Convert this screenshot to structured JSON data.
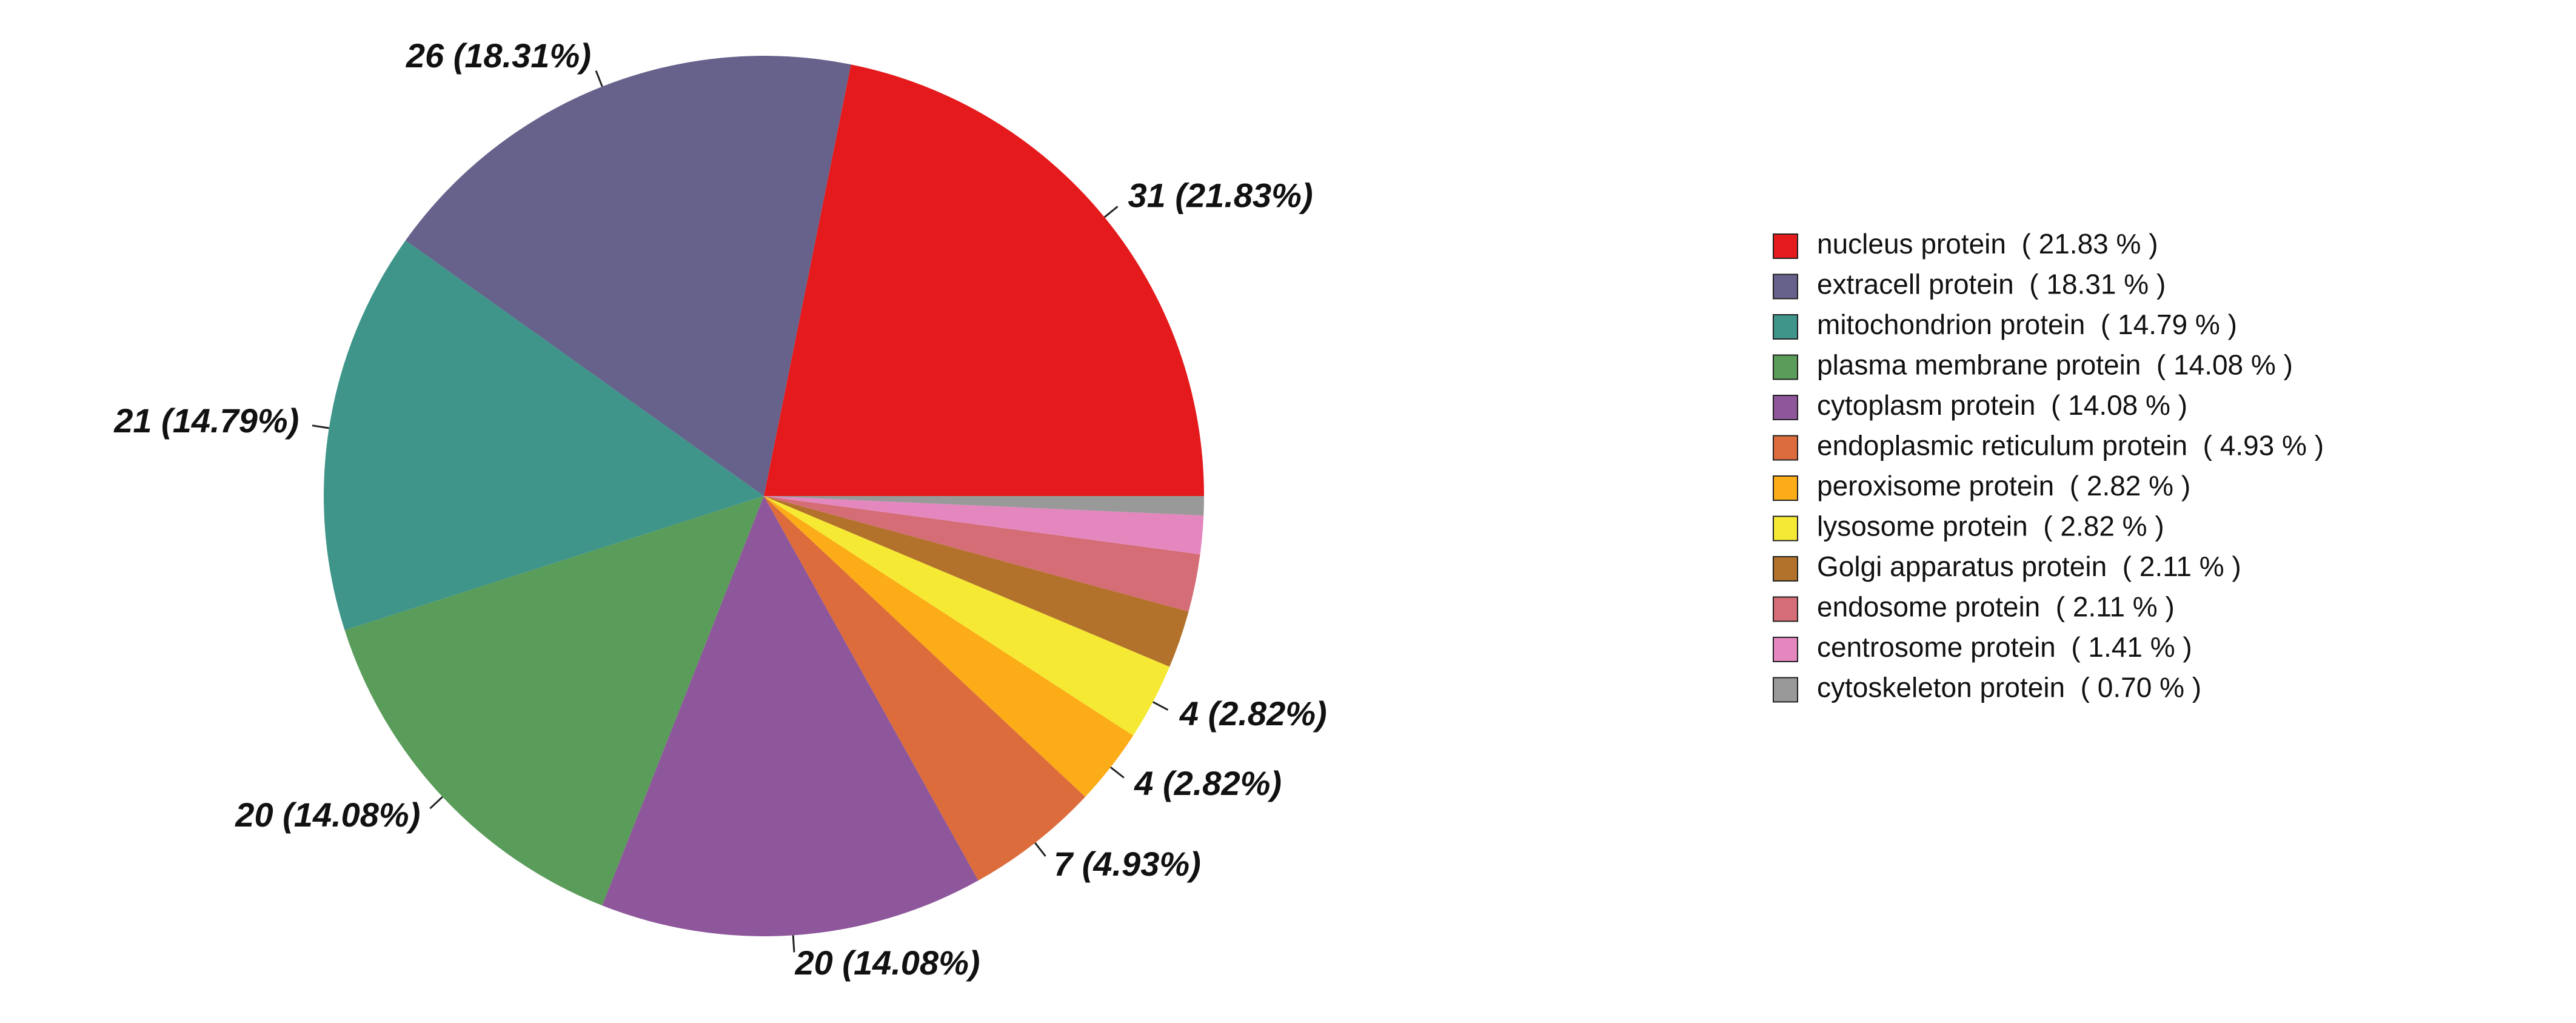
{
  "chart_data": {
    "type": "pie",
    "categories": [
      "nucleus protein  ( 21.83 % )",
      "extracell protein  ( 18.31 % )",
      "mitochondrion protein  ( 14.79 % )",
      "plasma membrane protein  ( 14.08 % )",
      "cytoplasm protein  ( 14.08 % )",
      "endoplasmic reticulum protein  ( 4.93 % )",
      "peroxisome protein  ( 2.82 % )",
      "lysosome protein  ( 2.82 % )",
      "Golgi apparatus protein  ( 2.11 % )",
      "endosome protein  ( 2.11 % )",
      "centrosome protein  ( 1.41 % )",
      "cytoskeleton protein  ( 0.70 % )"
    ],
    "values": [
      31,
      26,
      21,
      20,
      20,
      7,
      4,
      4,
      3,
      3,
      2,
      1
    ],
    "value_labels": [
      "31 (21.83%)",
      "26 (18.31%)",
      "21 (14.79%)",
      "20 (14.08%)",
      "20 (14.08%)",
      "7 (4.93%)",
      "4 (2.82%)",
      "4 (2.82%)",
      null,
      null,
      null,
      null
    ],
    "colors": [
      "#e41a1c",
      "#66628c",
      "#40958a",
      "#5a9c5a",
      "#8e579b",
      "#dc6c3c",
      "#fcac17",
      "#f5e934",
      "#b3722b",
      "#d46d76",
      "#e487bf",
      "#999999"
    ],
    "legend": "right"
  }
}
